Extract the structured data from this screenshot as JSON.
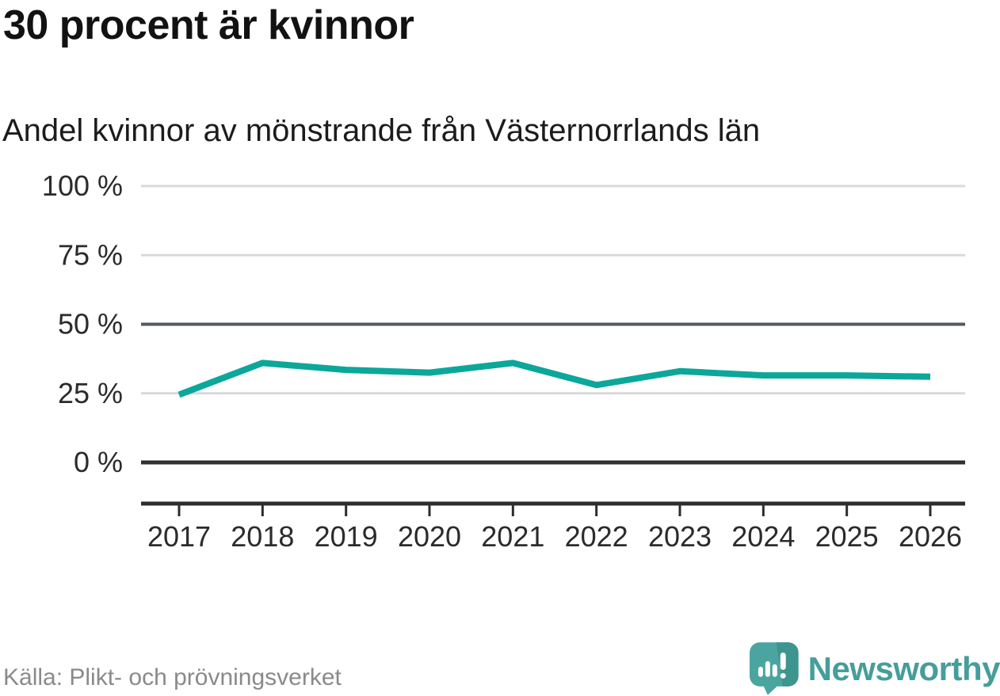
{
  "header": {
    "title": "30 procent är kvinnor",
    "subtitle": "Andel kvinnor av mönstrande från Västernorrlands län"
  },
  "footer": {
    "source": "Källa: Plikt- och prövningsverket",
    "brand": "Newsworthy"
  },
  "colors": {
    "line": "#0ca79b",
    "grid_light": "#d9d9d9",
    "grid_mid": "#54585f",
    "grid_zero": "#303030",
    "axis": "#2d2d2d",
    "tick_label": "#2b2b2b",
    "logo_teal": "#4aa5a0",
    "logo_teal_dark": "#3e948f",
    "brand_text": "#459e9b"
  },
  "chart_data": {
    "type": "line",
    "title": "30 procent är kvinnor",
    "subtitle": "Andel kvinnor av mönstrande från Västernorrlands län",
    "x": [
      2017,
      2018,
      2019,
      2020,
      2021,
      2022,
      2023,
      2024,
      2025,
      2026
    ],
    "series": [
      {
        "name": "Andel kvinnor av mönstrande",
        "values": [
          24.5,
          36,
          33.5,
          32.5,
          36,
          28,
          33,
          31.5,
          31.5,
          31
        ]
      }
    ],
    "ylim": [
      0,
      100
    ],
    "yticks": [
      {
        "value": 100,
        "label": "100 %",
        "emphasis": "light"
      },
      {
        "value": 75,
        "label": "75 %",
        "emphasis": "light"
      },
      {
        "value": 50,
        "label": "50 %",
        "emphasis": "mid"
      },
      {
        "value": 25,
        "label": "25 %",
        "emphasis": "light"
      },
      {
        "value": 0,
        "label": "0 %",
        "emphasis": "zero"
      }
    ],
    "xlabel": "",
    "ylabel": "",
    "grid": "horizontal",
    "legend": "none",
    "source": "Källa: Plikt- och prövningsverket"
  }
}
